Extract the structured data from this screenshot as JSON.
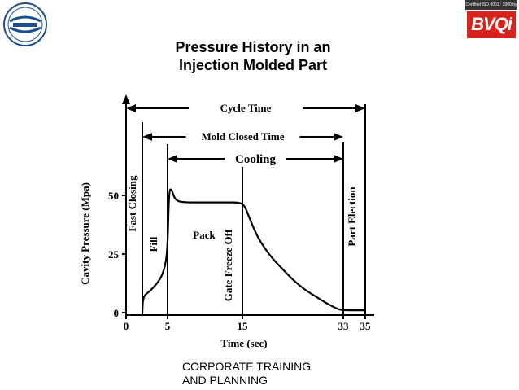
{
  "slide": {
    "footer_line1": "CORPORATE TRAINING",
    "footer_line2": "AND PLANNING",
    "right_logo_text": "BVQi",
    "right_logo_cert": "Certified ISO 9001 : 2000 by",
    "left_logo_text": "CIPET",
    "colors": {
      "brand_red": "#d8231c",
      "logo_blue": "#1d4f8c"
    }
  },
  "chart_data": {
    "type": "line",
    "title_line1": "Pressure History in an",
    "title_line2": "Injection Molded Part",
    "xlabel": "Time (sec)",
    "ylabel": "Cavity Pressure (Mpa)",
    "xlim": [
      0,
      35
    ],
    "ylim": [
      0,
      55
    ],
    "x_ticks": [
      0,
      5,
      15,
      33,
      35
    ],
    "y_ticks": [
      0,
      25,
      50
    ],
    "series": [
      {
        "x": [
          1.5,
          1.6,
          2.5,
          4.0,
          4.7,
          5.0,
          5.2,
          5.5,
          6.0,
          7.0,
          10,
          13,
          14.5,
          15.3,
          16,
          17,
          18,
          20,
          22,
          24,
          26,
          28,
          30,
          32,
          33,
          35
        ],
        "y": [
          0,
          7,
          9,
          14,
          20,
          28,
          52,
          53,
          48,
          47,
          47,
          47,
          47,
          46,
          42,
          36,
          31,
          24,
          19,
          14,
          10,
          7,
          4,
          1.5,
          1,
          1
        ]
      }
    ],
    "verticals": [
      {
        "x": 1.5,
        "label": "Fast Closing"
      },
      {
        "x": 5,
        "label": "Fill"
      },
      {
        "x": 15,
        "label": "Gate Freeze Off"
      },
      {
        "x": 33,
        "label": "Part Election"
      },
      {
        "x": 35,
        "label": ""
      }
    ],
    "region_labels": [
      {
        "label": "Pack"
      }
    ],
    "spans": [
      {
        "label": "Cycle Time",
        "from": 0,
        "to": 35
      },
      {
        "label": "Mold Closed Time",
        "from": 1.5,
        "to": 33
      },
      {
        "label": "Cooling",
        "from": 5,
        "to": 33
      }
    ],
    "legend": "none",
    "grid": false
  }
}
